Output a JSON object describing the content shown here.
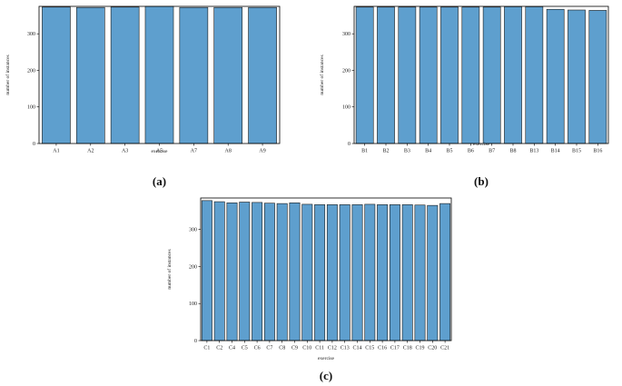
{
  "colors": {
    "bar": "#5e9fce",
    "bar_edge": "#1a1a1a",
    "axis": "#000000"
  },
  "chart_data": [
    {
      "type": "bar",
      "caption": "(a)",
      "xlabel": "exercise",
      "ylabel": "number of instances",
      "ylim": [
        0,
        375
      ],
      "yticks": [
        0,
        100,
        200,
        300
      ],
      "categories": [
        "A1",
        "A2",
        "A3",
        "A5",
        "A7",
        "A8",
        "A9"
      ],
      "values": [
        373,
        372,
        373,
        375,
        372,
        372,
        372
      ]
    },
    {
      "type": "bar",
      "caption": "(b)",
      "xlabel": "exercise",
      "ylabel": "number of instances",
      "ylim": [
        0,
        375
      ],
      "yticks": [
        0,
        100,
        200,
        300
      ],
      "categories": [
        "B1",
        "B2",
        "B3",
        "B4",
        "B5",
        "B6",
        "B7",
        "B8",
        "B13",
        "B14",
        "B15",
        "B16"
      ],
      "values": [
        373,
        373,
        373,
        373,
        373,
        373,
        373,
        374,
        374,
        367,
        365,
        364
      ]
    },
    {
      "type": "bar",
      "caption": "(c)",
      "xlabel": "exercise",
      "ylabel": "number of instances",
      "ylim": [
        0,
        385
      ],
      "yticks": [
        0,
        100,
        200,
        300
      ],
      "categories": [
        "C1",
        "C2",
        "C4",
        "C5",
        "C6",
        "C7",
        "C8",
        "C9",
        "C10",
        "C11",
        "C12",
        "C13",
        "C14",
        "C15",
        "C16",
        "C17",
        "C18",
        "C19",
        "C20",
        "C21"
      ],
      "values": [
        378,
        375,
        372,
        374,
        373,
        371,
        370,
        372,
        368,
        367,
        367,
        367,
        367,
        368,
        367,
        367,
        367,
        366,
        365,
        370
      ]
    }
  ]
}
